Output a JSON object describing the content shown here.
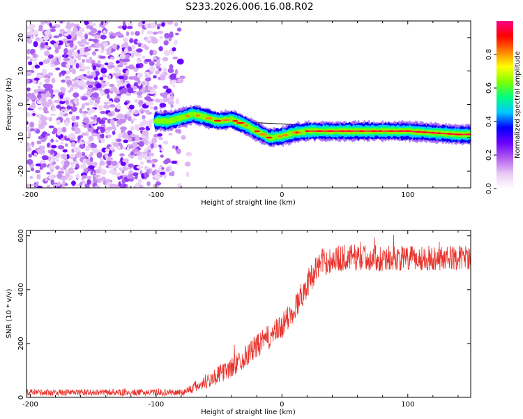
{
  "title": "S233.2026.006.16.08.R02",
  "colors": {
    "line": "#e8322b",
    "axis": "#000000",
    "background": "#ffffff"
  },
  "chart_data": [
    {
      "type": "heatmap",
      "name": "spectrogram",
      "xlabel": "Height of straight line (km)",
      "ylabel": "Frequency (Hz)",
      "xlim": [
        -203,
        150
      ],
      "ylim": [
        -25,
        25
      ],
      "xticks": [
        -200,
        -100,
        0,
        100
      ],
      "yticks": [
        -20,
        -10,
        0,
        10,
        20
      ],
      "colorbar": {
        "label": "Normalized spectral amplitude",
        "range": [
          0,
          1
        ],
        "ticks": [
          0.0,
          0.2,
          0.4,
          0.6,
          0.8
        ],
        "tick_labels": [
          "0.0",
          "0.2",
          "0.4",
          "0.6",
          "0.8"
        ],
        "colormap": [
          "#ffffff",
          "#e8c8f4",
          "#b35cf0",
          "#6a00ff",
          "#0000ff",
          "#00c8ff",
          "#00ff80",
          "#80ff00",
          "#ffff00",
          "#ff8000",
          "#ff0000",
          "#ff0088"
        ]
      },
      "noise_region": {
        "x_from": -203,
        "x_to": -78,
        "amplitude": "low, scattered"
      },
      "signal_track": {
        "description": "tone frequency vs height",
        "x": [
          -100,
          -90,
          -80,
          -70,
          -60,
          -50,
          -40,
          -30,
          -20,
          -10,
          0,
          10,
          20,
          40,
          60,
          80,
          100,
          120,
          140,
          150
        ],
        "frequency_hz": [
          -5,
          -5,
          -4,
          -3,
          -4,
          -5,
          -4.5,
          -6,
          -8,
          -10,
          -9.5,
          -8.5,
          -8,
          -8,
          -8,
          -8,
          -8,
          -8.5,
          -9,
          -9
        ]
      },
      "reference_line": {
        "x": [
          -90,
          150
        ],
        "frequency_hz": [
          -4,
          -9
        ]
      }
    },
    {
      "type": "line",
      "name": "snr",
      "xlabel": "Height of straight line (km)",
      "ylabel": "SNR (10 * v/v)",
      "xlim": [
        -203,
        150
      ],
      "ylim": [
        0,
        620
      ],
      "xticks": [
        -200,
        -100,
        0,
        100
      ],
      "yticks": [
        0,
        200,
        400,
        600
      ],
      "series": [
        {
          "name": "SNR",
          "x_start": -203,
          "x_end": 150,
          "trend_x": [
            -203,
            -80,
            -75,
            -60,
            -40,
            -20,
            0,
            10,
            20,
            30,
            50,
            100,
            150
          ],
          "trend_y": [
            18,
            18,
            25,
            60,
            110,
            190,
            260,
            330,
            420,
            500,
            520,
            515,
            520
          ],
          "noise_amplitude_x": [
            -203,
            -80,
            -60,
            -20,
            20,
            50,
            150
          ],
          "noise_amplitude_y": [
            12,
            12,
            30,
            45,
            50,
            50,
            45
          ]
        }
      ]
    }
  ]
}
